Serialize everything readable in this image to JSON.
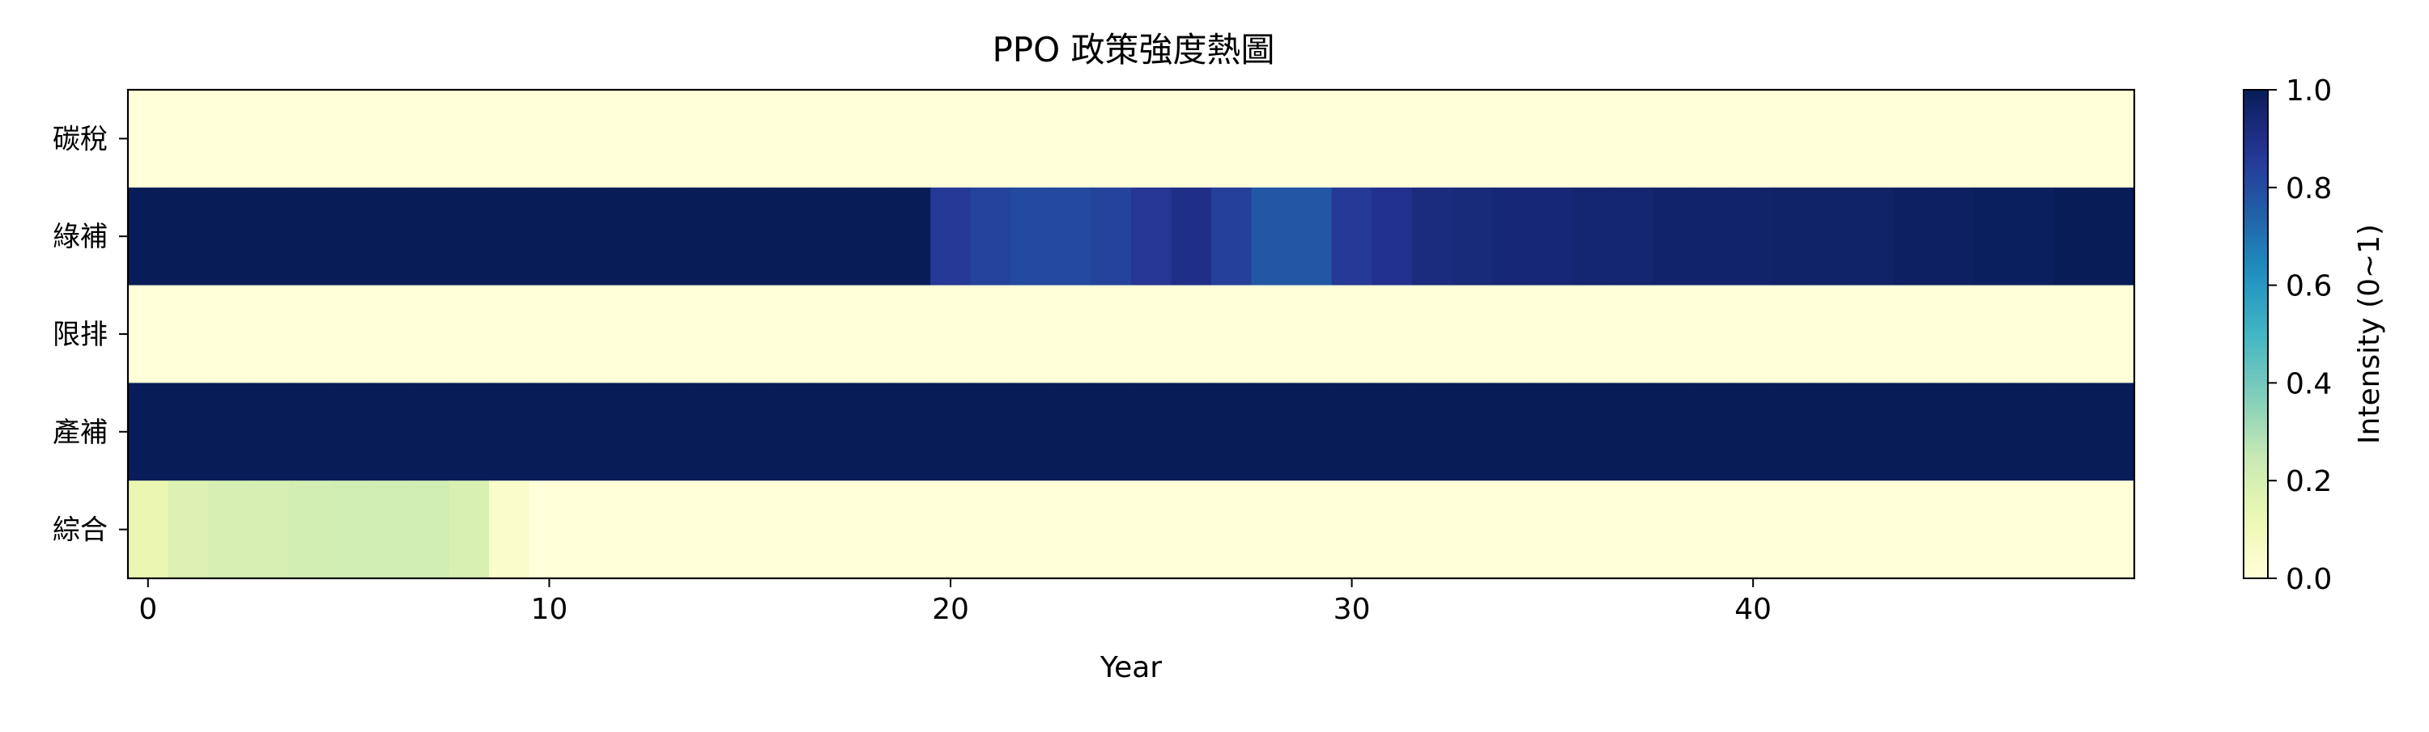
{
  "chart_data": {
    "type": "heatmap",
    "title": "PPO 政策強度熱圖",
    "xlabel": "Year",
    "ylabel": "",
    "rows": [
      "碳稅",
      "綠補",
      "限排",
      "產補",
      "綜合"
    ],
    "x_start": 0,
    "x_count": 50,
    "x_ticks": [
      0,
      10,
      20,
      30,
      40
    ],
    "x_tick_labels": [
      "0",
      "10",
      "20",
      "30",
      "40"
    ],
    "colorscale": "YlGnBu",
    "color_range": [
      0.0,
      1.0
    ],
    "colorbar": {
      "label": "Intensity (0~1)",
      "ticks": [
        0.0,
        0.2,
        0.4,
        0.6,
        0.8,
        1.0
      ],
      "tick_labels": [
        "0.0",
        "0.2",
        "0.4",
        "0.6",
        "0.8",
        "1.0"
      ]
    },
    "values": [
      [
        0,
        0,
        0,
        0,
        0,
        0,
        0,
        0,
        0,
        0,
        0,
        0,
        0,
        0,
        0,
        0,
        0,
        0,
        0,
        0,
        0,
        0,
        0,
        0,
        0,
        0,
        0,
        0,
        0,
        0,
        0,
        0,
        0,
        0,
        0,
        0,
        0,
        0,
        0,
        0,
        0,
        0,
        0,
        0,
        0,
        0,
        0,
        0,
        0,
        0
      ],
      [
        1,
        1,
        1,
        1,
        1,
        1,
        1,
        1,
        1,
        1,
        1,
        1,
        1,
        1,
        1,
        1,
        1,
        1,
        1,
        1,
        0.86,
        0.83,
        0.81,
        0.81,
        0.83,
        0.87,
        0.9,
        0.84,
        0.77,
        0.77,
        0.86,
        0.89,
        0.92,
        0.93,
        0.94,
        0.94,
        0.95,
        0.95,
        0.96,
        0.96,
        0.96,
        0.97,
        0.97,
        0.97,
        0.98,
        0.98,
        0.99,
        0.99,
        1,
        1
      ],
      [
        0,
        0,
        0,
        0,
        0,
        0,
        0,
        0,
        0,
        0,
        0,
        0,
        0,
        0,
        0,
        0,
        0,
        0,
        0,
        0,
        0,
        0,
        0,
        0,
        0,
        0,
        0,
        0,
        0,
        0,
        0,
        0,
        0,
        0,
        0,
        0,
        0,
        0,
        0,
        0,
        0,
        0,
        0,
        0,
        0,
        0,
        0,
        0,
        0,
        0
      ],
      [
        1,
        1,
        1,
        1,
        1,
        1,
        1,
        1,
        1,
        1,
        1,
        1,
        1,
        1,
        1,
        1,
        1,
        1,
        1,
        1,
        1,
        1,
        1,
        1,
        1,
        1,
        1,
        1,
        1,
        1,
        1,
        1,
        1,
        1,
        1,
        1,
        1,
        1,
        1,
        1,
        1,
        1,
        1,
        1,
        1,
        1,
        1,
        1,
        1,
        1
      ],
      [
        0.13,
        0.18,
        0.2,
        0.2,
        0.21,
        0.22,
        0.22,
        0.22,
        0.19,
        0.04,
        0,
        0,
        0,
        0,
        0,
        0,
        0,
        0,
        0,
        0,
        0,
        0,
        0,
        0,
        0,
        0,
        0,
        0,
        0,
        0,
        0,
        0,
        0,
        0,
        0,
        0,
        0,
        0,
        0,
        0,
        0,
        0,
        0,
        0,
        0,
        0,
        0,
        0,
        0,
        0
      ]
    ]
  }
}
